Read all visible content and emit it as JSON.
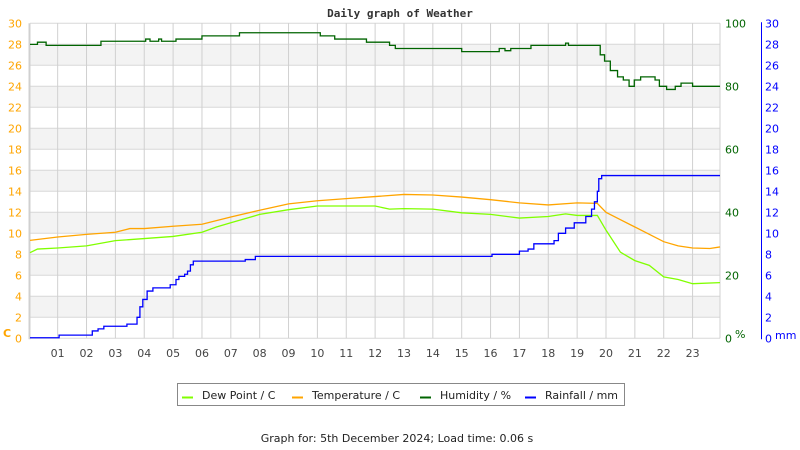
{
  "chart_data": {
    "type": "line",
    "title": "Daily graph of Weather",
    "x_ticks": [
      "01",
      "02",
      "03",
      "04",
      "05",
      "06",
      "07",
      "08",
      "09",
      "10",
      "11",
      "12",
      "13",
      "14",
      "15",
      "16",
      "17",
      "18",
      "19",
      "20",
      "21",
      "22",
      "23"
    ],
    "xlim": [
      0,
      24
    ],
    "grid": true,
    "legend_position": "bottom",
    "axes": {
      "left": {
        "label": "C",
        "ylim": [
          0,
          30
        ],
        "ticks": [
          0,
          2,
          4,
          6,
          8,
          10,
          12,
          14,
          16,
          18,
          20,
          22,
          24,
          26,
          28,
          30
        ],
        "color": "#ffa500"
      },
      "right_humidity": {
        "label": "%",
        "ylim": [
          0,
          100
        ],
        "ticks": [
          0,
          20,
          40,
          60,
          80,
          100
        ],
        "color": "#006400"
      },
      "right_rain": {
        "label": "mm",
        "ylim": [
          0,
          30
        ],
        "ticks": [
          0,
          2,
          4,
          6,
          8,
          10,
          12,
          14,
          16,
          18,
          20,
          22,
          24,
          26,
          28,
          30
        ],
        "color": "#0000ff"
      }
    },
    "series": [
      {
        "name": "Dew Point / C",
        "axis": "left",
        "color": "#80ff00",
        "step": false,
        "points": [
          [
            0,
            8.15
          ],
          [
            0.3,
            8.5
          ],
          [
            1,
            8.6
          ],
          [
            2,
            8.8
          ],
          [
            3,
            9.3
          ],
          [
            4,
            9.5
          ],
          [
            5,
            9.7
          ],
          [
            6,
            10.1
          ],
          [
            6.5,
            10.6
          ],
          [
            7,
            11.0
          ],
          [
            8,
            11.8
          ],
          [
            9,
            12.25
          ],
          [
            10,
            12.6
          ],
          [
            11,
            12.6
          ],
          [
            12,
            12.6
          ],
          [
            12.5,
            12.3
          ],
          [
            13,
            12.35
          ],
          [
            14,
            12.3
          ],
          [
            15,
            11.95
          ],
          [
            16,
            11.8
          ],
          [
            17,
            11.45
          ],
          [
            18,
            11.6
          ],
          [
            18.6,
            11.85
          ],
          [
            19,
            11.7
          ],
          [
            19.7,
            11.7
          ],
          [
            20,
            10.3
          ],
          [
            20.5,
            8.2
          ],
          [
            21,
            7.4
          ],
          [
            21.5,
            6.95
          ],
          [
            22,
            5.85
          ],
          [
            22.5,
            5.6
          ],
          [
            23,
            5.2
          ],
          [
            24,
            5.3
          ]
        ]
      },
      {
        "name": "Temperature / C",
        "axis": "left",
        "color": "#ffa500",
        "step": false,
        "points": [
          [
            0,
            9.33
          ],
          [
            1,
            9.65
          ],
          [
            2,
            9.9
          ],
          [
            3,
            10.1
          ],
          [
            3.5,
            10.45
          ],
          [
            4,
            10.45
          ],
          [
            5,
            10.67
          ],
          [
            6,
            10.86
          ],
          [
            7,
            11.55
          ],
          [
            8,
            12.2
          ],
          [
            9,
            12.8
          ],
          [
            10,
            13.1
          ],
          [
            11,
            13.3
          ],
          [
            12,
            13.5
          ],
          [
            13,
            13.7
          ],
          [
            14,
            13.65
          ],
          [
            15,
            13.45
          ],
          [
            16,
            13.2
          ],
          [
            17,
            12.9
          ],
          [
            18,
            12.7
          ],
          [
            19,
            12.9
          ],
          [
            19.7,
            12.85
          ],
          [
            20,
            12.0
          ],
          [
            20.5,
            11.3
          ],
          [
            21,
            10.6
          ],
          [
            21.5,
            9.9
          ],
          [
            22,
            9.2
          ],
          [
            22.5,
            8.8
          ],
          [
            23,
            8.6
          ],
          [
            23.6,
            8.55
          ],
          [
            24,
            8.7
          ]
        ]
      },
      {
        "name": "Humidity / %",
        "axis": "right_humidity",
        "color": "#006400",
        "step": true,
        "points": [
          [
            0,
            93.3
          ],
          [
            0.3,
            94
          ],
          [
            0.6,
            93
          ],
          [
            2.5,
            94.3
          ],
          [
            4.05,
            95
          ],
          [
            4.2,
            94.3
          ],
          [
            4.5,
            95
          ],
          [
            4.6,
            94.3
          ],
          [
            5.1,
            95
          ],
          [
            6.0,
            96
          ],
          [
            7.3,
            97
          ],
          [
            10.1,
            96
          ],
          [
            10.6,
            95
          ],
          [
            11.7,
            94
          ],
          [
            12.5,
            93
          ],
          [
            12.7,
            92
          ],
          [
            15.0,
            91
          ],
          [
            16.3,
            92
          ],
          [
            16.5,
            91.3
          ],
          [
            16.7,
            92
          ],
          [
            17.4,
            93
          ],
          [
            18.6,
            93.7
          ],
          [
            18.7,
            93
          ],
          [
            19.8,
            90
          ],
          [
            19.95,
            88
          ],
          [
            20.15,
            85
          ],
          [
            20.4,
            83
          ],
          [
            20.6,
            82
          ],
          [
            20.8,
            80
          ],
          [
            20.98,
            82
          ],
          [
            21.2,
            83
          ],
          [
            21.7,
            82
          ],
          [
            21.85,
            80
          ],
          [
            22.1,
            79
          ],
          [
            22.4,
            80
          ],
          [
            22.6,
            81
          ],
          [
            23.0,
            80
          ],
          [
            24,
            80
          ]
        ]
      },
      {
        "name": "Rainfall / mm",
        "axis": "right_rain",
        "color": "#0000ff",
        "step": true,
        "points": [
          [
            0,
            0.05
          ],
          [
            1.05,
            0.3
          ],
          [
            2.2,
            0.7
          ],
          [
            2.4,
            0.9
          ],
          [
            2.6,
            1.15
          ],
          [
            3.4,
            1.35
          ],
          [
            3.75,
            2
          ],
          [
            3.85,
            3
          ],
          [
            3.95,
            3.7
          ],
          [
            4.1,
            4.5
          ],
          [
            4.3,
            4.8
          ],
          [
            4.9,
            5.1
          ],
          [
            5.1,
            5.6
          ],
          [
            5.2,
            5.9
          ],
          [
            5.4,
            6.1
          ],
          [
            5.5,
            6.4
          ],
          [
            5.6,
            7.0
          ],
          [
            5.7,
            7.35
          ],
          [
            7.5,
            7.5
          ],
          [
            7.85,
            7.8
          ],
          [
            16.05,
            8.0
          ],
          [
            17.0,
            8.3
          ],
          [
            17.3,
            8.5
          ],
          [
            17.5,
            9.0
          ],
          [
            18.2,
            9.3
          ],
          [
            18.35,
            10.0
          ],
          [
            18.6,
            10.5
          ],
          [
            18.9,
            11.0
          ],
          [
            19.3,
            11.6
          ],
          [
            19.5,
            12.3
          ],
          [
            19.6,
            13
          ],
          [
            19.7,
            14
          ],
          [
            19.75,
            15.2
          ],
          [
            19.85,
            15.5
          ],
          [
            24,
            15.5
          ]
        ]
      }
    ]
  },
  "footer": "Graph for: 5th December 2024; Load time: 0.06 s"
}
